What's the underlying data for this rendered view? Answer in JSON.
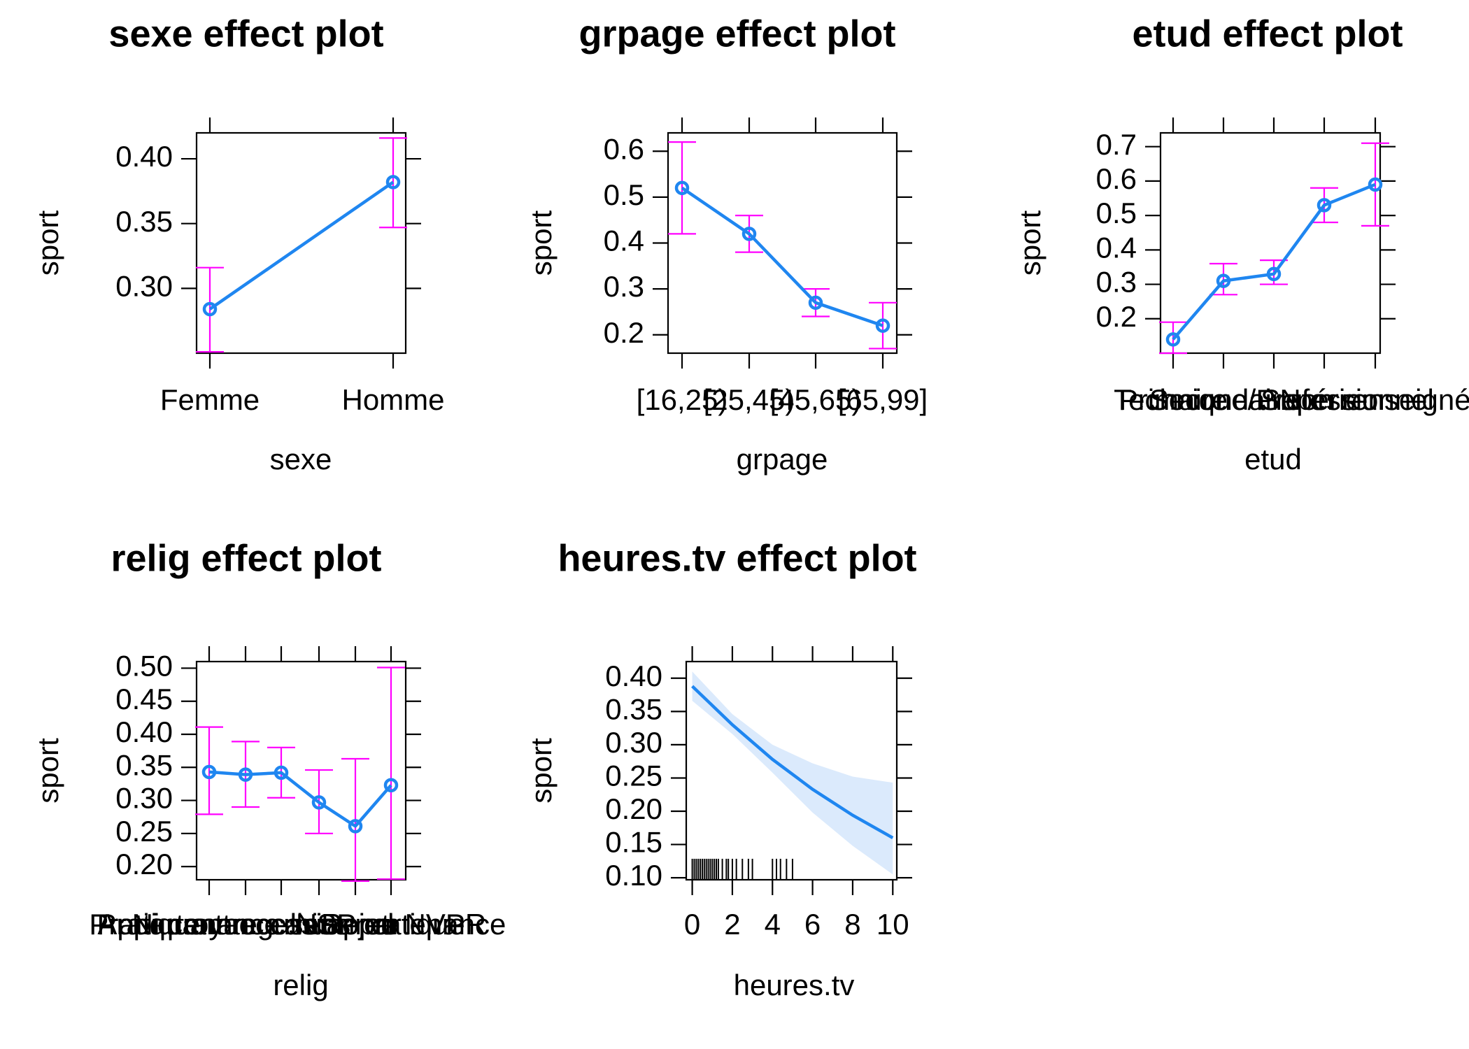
{
  "figure": {
    "background": "#ffffff",
    "response_label": "sport"
  },
  "colors": {
    "line": "#1f86f0",
    "ci": "#ff00ff",
    "band": "#dbeafc",
    "frame": "#000000",
    "rug": "#000000"
  },
  "chart_data": [
    {
      "type": "line",
      "title": "sexe effect plot",
      "xlabel": "sexe",
      "ylabel": "sport",
      "categories": [
        "Femme",
        "Homme"
      ],
      "values": [
        0.284,
        0.382
      ],
      "lower": [
        0.251,
        0.347
      ],
      "upper": [
        0.316,
        0.416
      ],
      "ylim": [
        0.25,
        0.42
      ],
      "yticks": [
        0.3,
        0.35,
        0.4
      ],
      "ytick_labels": [
        "0.30",
        "0.35",
        "0.40"
      ]
    },
    {
      "type": "line",
      "title": "grpage effect plot",
      "xlabel": "grpage",
      "ylabel": "sport",
      "categories": [
        "[16,25)",
        "[25,45)",
        "[45,65)",
        "[65,99]"
      ],
      "values": [
        0.52,
        0.42,
        0.27,
        0.22
      ],
      "lower": [
        0.42,
        0.38,
        0.24,
        0.17
      ],
      "upper": [
        0.62,
        0.46,
        0.3,
        0.27
      ],
      "ylim": [
        0.16,
        0.64
      ],
      "yticks": [
        0.2,
        0.3,
        0.4,
        0.5,
        0.6
      ],
      "ytick_labels": [
        "0.2",
        "0.3",
        "0.4",
        "0.5",
        "0.6"
      ]
    },
    {
      "type": "line",
      "title": "etud effect plot",
      "xlabel": "etud",
      "ylabel": "sport",
      "categories": [
        "Primaire",
        "Secondaire",
        "Technique/Professionnel",
        "Supérieur",
        "Non renseigné"
      ],
      "values": [
        0.14,
        0.31,
        0.33,
        0.53,
        0.59
      ],
      "lower": [
        0.1,
        0.27,
        0.3,
        0.48,
        0.47
      ],
      "upper": [
        0.19,
        0.36,
        0.37,
        0.58,
        0.71
      ],
      "ylim": [
        0.1,
        0.74
      ],
      "yticks": [
        0.2,
        0.3,
        0.4,
        0.5,
        0.6,
        0.7
      ],
      "ytick_labels": [
        "0.2",
        "0.3",
        "0.4",
        "0.5",
        "0.6",
        "0.7"
      ]
    },
    {
      "type": "line",
      "title": "relig effect plot",
      "xlabel": "relig",
      "ylabel": "sport",
      "categories": [
        "Pratiquant regulier",
        "Pratiquant occasionnel",
        "Appartenance sans pratique",
        "Ni croyance ni appartenance",
        "Rejet",
        "NSP ou NVPR"
      ],
      "values": [
        0.343,
        0.339,
        0.342,
        0.297,
        0.261,
        0.323
      ],
      "lower": [
        0.279,
        0.29,
        0.304,
        0.25,
        0.178,
        0.181
      ],
      "upper": [
        0.411,
        0.389,
        0.38,
        0.346,
        0.363,
        0.501
      ],
      "ylim": [
        0.18,
        0.51
      ],
      "yticks": [
        0.2,
        0.25,
        0.3,
        0.35,
        0.4,
        0.45,
        0.5
      ],
      "ytick_labels": [
        "0.20",
        "0.25",
        "0.30",
        "0.35",
        "0.40",
        "0.45",
        "0.50"
      ]
    },
    {
      "type": "line",
      "title": "heures.tv effect plot",
      "xlabel": "heures.tv",
      "ylabel": "sport",
      "x": [
        0,
        2,
        4,
        6,
        8,
        10
      ],
      "values": [
        0.388,
        0.33,
        0.278,
        0.233,
        0.194,
        0.16
      ],
      "lower": [
        0.366,
        0.316,
        0.258,
        0.198,
        0.148,
        0.105
      ],
      "upper": [
        0.41,
        0.346,
        0.3,
        0.272,
        0.252,
        0.243
      ],
      "xlim": [
        -0.3,
        10.2
      ],
      "ylim": [
        0.097,
        0.425
      ],
      "xticks": [
        0,
        2,
        4,
        6,
        8,
        10
      ],
      "xtick_labels": [
        "0",
        "2",
        "4",
        "6",
        "8",
        "10"
      ],
      "yticks": [
        0.1,
        0.15,
        0.2,
        0.25,
        0.3,
        0.35,
        0.4
      ],
      "ytick_labels": [
        "0.10",
        "0.15",
        "0.20",
        "0.25",
        "0.30",
        "0.35",
        "0.40"
      ],
      "rug": [
        0,
        0.1,
        0.2,
        0.3,
        0.4,
        0.5,
        0.6,
        0.7,
        0.8,
        0.9,
        1.0,
        1.1,
        1.2,
        1.3,
        1.5,
        1.7,
        1.8,
        2.0,
        2.2,
        2.5,
        2.8,
        3.0,
        4.0,
        4.2,
        4.4,
        4.7,
        5.0
      ]
    }
  ]
}
